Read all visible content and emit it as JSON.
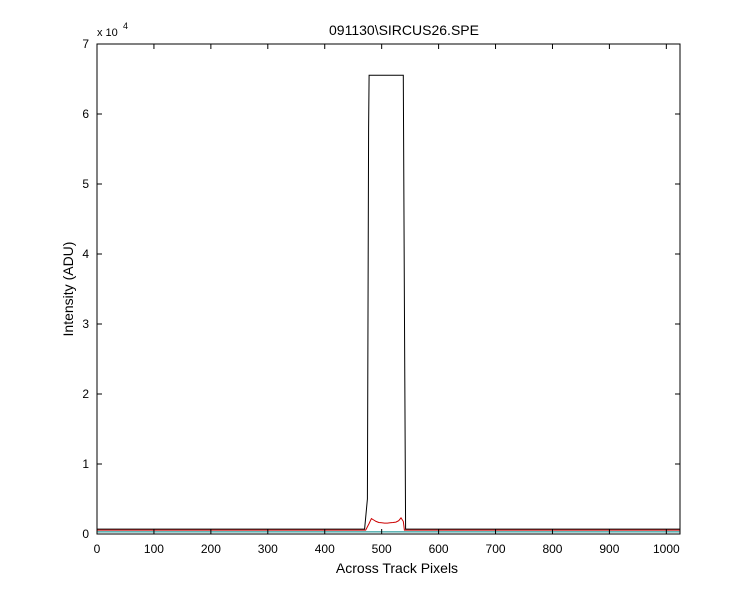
{
  "chart_data": {
    "type": "line",
    "title": "091130\\SIRCUS26.SPE",
    "xlabel": "Across Track Pixels",
    "ylabel": "Intensity (ADU)",
    "y_multiplier_label": "x 10",
    "y_multiplier_exponent": "4",
    "xlim": [
      0,
      1024
    ],
    "ylim": [
      0,
      70000
    ],
    "xticks": [
      "0",
      "100",
      "200",
      "300",
      "400",
      "500",
      "600",
      "700",
      "800",
      "900",
      "1000"
    ],
    "yticks": [
      "0",
      "1",
      "2",
      "3",
      "4",
      "5",
      "6",
      "7"
    ],
    "grid": false,
    "series": [
      {
        "color": "#000000",
        "x": [
          0,
          470,
          475,
          477,
          478,
          480,
          538,
          540,
          542,
          1024
        ],
        "y": [
          700,
          700,
          5000,
          58000,
          65535,
          65535,
          65535,
          33000,
          700,
          700
        ]
      },
      {
        "color": "#cc0000",
        "x": [
          0,
          472,
          478,
          482,
          486,
          490,
          495,
          500,
          505,
          510,
          515,
          520,
          525,
          530,
          534,
          538,
          540,
          1024
        ],
        "y": [
          550,
          550,
          1500,
          2200,
          2000,
          1800,
          1650,
          1600,
          1550,
          1550,
          1600,
          1650,
          1700,
          1900,
          2300,
          1800,
          550,
          550
        ]
      },
      {
        "color": "#008a8a",
        "x": [
          0,
          1024
        ],
        "y": [
          300,
          300
        ]
      }
    ]
  }
}
